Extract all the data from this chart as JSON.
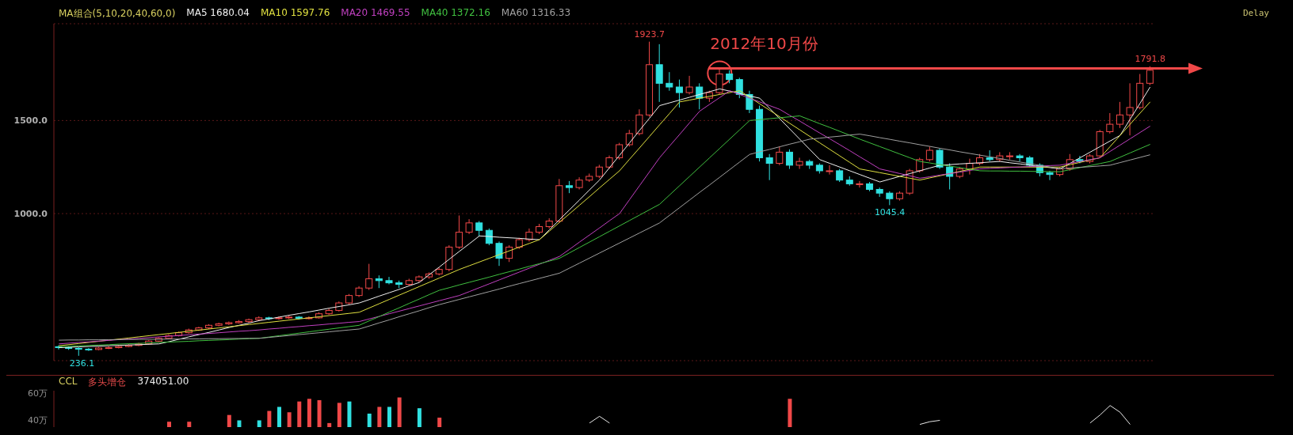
{
  "chart_data": [
    {
      "type": "candlestick",
      "legend_title": "MA组合(5,10,20,40,60,0)",
      "legend": "top left",
      "grid": "y",
      "tick_labels": "y",
      "categories": [
        null,
        null,
        null,
        null,
        null,
        null,
        null,
        null,
        null,
        null,
        null,
        null,
        null,
        null,
        null,
        null,
        null,
        null,
        null,
        null,
        null,
        null,
        null,
        null,
        null,
        null,
        null,
        null,
        null,
        null,
        null,
        null,
        null,
        null,
        null,
        null,
        null,
        null,
        null,
        null,
        null,
        null,
        null,
        null,
        null,
        null,
        null,
        null,
        null,
        null,
        null,
        null,
        null,
        null,
        null,
        null,
        null,
        null,
        null,
        null,
        null,
        null,
        null,
        null,
        null,
        null,
        null,
        null,
        null,
        null,
        null,
        null,
        null,
        null,
        null,
        null,
        null,
        null,
        null,
        null,
        null,
        null,
        null,
        null,
        null,
        null,
        null,
        null,
        null,
        null,
        null,
        null,
        null,
        null,
        null,
        null,
        null,
        null,
        null,
        null,
        null,
        null,
        null,
        null,
        null,
        null,
        null,
        null,
        null,
        null
      ],
      "ohlc": [
        [
          285,
          292,
          270,
          280
        ],
        [
          280,
          286,
          268,
          276
        ],
        [
          276,
          282,
          236.1,
          272
        ],
        [
          272,
          278,
          262,
          270
        ],
        [
          270,
          284,
          266,
          278
        ],
        [
          278,
          288,
          272,
          280
        ],
        [
          280,
          292,
          276,
          286
        ],
        [
          286,
          298,
          282,
          292
        ],
        [
          292,
          306,
          288,
          300
        ],
        [
          300,
          320,
          296,
          315
        ],
        [
          315,
          336,
          310,
          330
        ],
        [
          330,
          352,
          326,
          345
        ],
        [
          345,
          366,
          340,
          360
        ],
        [
          360,
          382,
          355,
          375
        ],
        [
          375,
          392,
          370,
          386
        ],
        [
          386,
          406,
          380,
          400
        ],
        [
          400,
          414,
          394,
          408
        ],
        [
          408,
          420,
          402,
          414
        ],
        [
          414,
          428,
          410,
          420
        ],
        [
          420,
          436,
          414,
          430
        ],
        [
          430,
          448,
          424,
          440
        ],
        [
          440,
          446,
          428,
          436
        ],
        [
          436,
          448,
          430,
          440
        ],
        [
          440,
          452,
          434,
          444
        ],
        [
          444,
          450,
          430,
          438
        ],
        [
          438,
          448,
          432,
          440
        ],
        [
          440,
          470,
          436,
          462
        ],
        [
          462,
          490,
          456,
          480
        ],
        [
          480,
          528,
          474,
          520
        ],
        [
          520,
          568,
          512,
          560
        ],
        [
          560,
          610,
          552,
          600
        ],
        [
          600,
          730,
          590,
          650
        ],
        [
          650,
          668,
          600,
          640
        ],
        [
          640,
          660,
          620,
          628
        ],
        [
          628,
          640,
          600,
          620
        ],
        [
          620,
          650,
          612,
          640
        ],
        [
          640,
          668,
          632,
          660
        ],
        [
          660,
          684,
          650,
          676
        ],
        [
          676,
          710,
          668,
          700
        ],
        [
          700,
          830,
          690,
          820
        ],
        [
          820,
          990,
          810,
          900
        ],
        [
          900,
          970,
          890,
          950
        ],
        [
          950,
          960,
          880,
          910
        ],
        [
          910,
          920,
          830,
          840
        ],
        [
          840,
          850,
          719,
          760
        ],
        [
          760,
          830,
          740,
          820
        ],
        [
          820,
          870,
          810,
          860
        ],
        [
          860,
          920,
          850,
          900
        ],
        [
          900,
          945,
          890,
          930
        ],
        [
          930,
          975,
          920,
          960
        ],
        [
          960,
          1186,
          950,
          1150
        ],
        [
          1150,
          1175,
          1110,
          1140
        ],
        [
          1140,
          1195,
          1130,
          1180
        ],
        [
          1180,
          1215,
          1170,
          1200
        ],
        [
          1200,
          1262,
          1190,
          1250
        ],
        [
          1250,
          1312,
          1240,
          1300
        ],
        [
          1300,
          1380,
          1290,
          1370
        ],
        [
          1370,
          1450,
          1360,
          1430
        ],
        [
          1430,
          1560,
          1420,
          1530
        ],
        [
          1530,
          1923.7,
          1520,
          1800
        ],
        [
          1800,
          1910,
          1600,
          1700
        ],
        [
          1700,
          1760,
          1660,
          1680
        ],
        [
          1680,
          1720,
          1570,
          1650
        ],
        [
          1650,
          1740,
          1640,
          1680
        ],
        [
          1680,
          1700,
          1560,
          1620
        ],
        [
          1620,
          1660,
          1600,
          1650
        ],
        [
          1650,
          1780,
          1640,
          1750
        ],
        [
          1750,
          1770,
          1700,
          1720
        ],
        [
          1720,
          1730,
          1620,
          1640
        ],
        [
          1640,
          1660,
          1540,
          1560
        ],
        [
          1560,
          1580,
          1280,
          1300
        ],
        [
          1300,
          1320,
          1180,
          1270
        ],
        [
          1270,
          1360,
          1260,
          1330
        ],
        [
          1330,
          1345,
          1240,
          1260
        ],
        [
          1260,
          1300,
          1240,
          1280
        ],
        [
          1280,
          1290,
          1240,
          1260
        ],
        [
          1260,
          1270,
          1215,
          1230
        ],
        [
          1230,
          1260,
          1210,
          1230
        ],
        [
          1230,
          1240,
          1170,
          1180
        ],
        [
          1180,
          1200,
          1150,
          1160
        ],
        [
          1160,
          1175,
          1140,
          1160
        ],
        [
          1160,
          1170,
          1120,
          1130
        ],
        [
          1130,
          1140,
          1090,
          1110
        ],
        [
          1110,
          1120,
          1045.4,
          1080
        ],
        [
          1080,
          1120,
          1070,
          1110
        ],
        [
          1110,
          1240,
          1100,
          1230
        ],
        [
          1230,
          1300,
          1220,
          1290
        ],
        [
          1290,
          1360,
          1280,
          1340
        ],
        [
          1340,
          1350,
          1240,
          1250
        ],
        [
          1250,
          1270,
          1130,
          1200
        ],
        [
          1200,
          1250,
          1190,
          1240
        ],
        [
          1240,
          1295,
          1210,
          1270
        ],
        [
          1270,
          1320,
          1260,
          1300
        ],
        [
          1300,
          1340,
          1280,
          1290
        ],
        [
          1290,
          1330,
          1280,
          1310
        ],
        [
          1310,
          1330,
          1290,
          1310
        ],
        [
          1310,
          1320,
          1280,
          1300
        ],
        [
          1300,
          1310,
          1250,
          1260
        ],
        [
          1260,
          1270,
          1200,
          1220
        ],
        [
          1220,
          1230,
          1180,
          1210
        ],
        [
          1210,
          1250,
          1200,
          1240
        ],
        [
          1240,
          1320,
          1230,
          1290
        ],
        [
          1290,
          1310,
          1270,
          1280
        ],
        [
          1280,
          1320,
          1270,
          1310
        ],
        [
          1310,
          1450,
          1300,
          1440
        ],
        [
          1440,
          1540,
          1430,
          1480
        ],
        [
          1480,
          1600,
          1460,
          1530
        ],
        [
          1530,
          1700,
          1420,
          1570
        ],
        [
          1570,
          1750,
          1560,
          1700
        ],
        [
          1700,
          1791.8,
          1690,
          1770
        ]
      ],
      "colors": [
        "#30e0e0",
        "#30e0e0",
        "#30e0e0",
        "#30e0e0",
        "#f04848",
        "#f04848",
        "#f04848",
        "#f04848",
        "#f04848",
        "#f04848",
        "#f04848",
        "#f04848",
        "#f04848",
        "#f04848",
        "#f04848",
        "#f04848",
        "#f04848",
        "#f04848",
        "#f04848",
        "#f04848",
        "#f04848",
        "#30e0e0",
        "#f04848",
        "#f04848",
        "#30e0e0",
        "#f04848",
        "#f04848",
        "#f04848",
        "#f04848",
        "#f04848",
        "#f04848",
        "#f04848",
        "#30e0e0",
        "#30e0e0",
        "#30e0e0",
        "#f04848",
        "#f04848",
        "#f04848",
        "#f04848",
        "#f04848",
        "#f04848",
        "#f04848",
        "#30e0e0",
        "#30e0e0",
        "#30e0e0",
        "#f04848",
        "#f04848",
        "#f04848",
        "#f04848",
        "#f04848",
        "#f04848",
        "#30e0e0",
        "#f04848",
        "#f04848",
        "#f04848",
        "#f04848",
        "#f04848",
        "#f04848",
        "#f04848",
        "#f04848",
        "#30e0e0",
        "#30e0e0",
        "#30e0e0",
        "#f04848",
        "#30e0e0",
        "#f04848",
        "#f04848",
        "#30e0e0",
        "#30e0e0",
        "#30e0e0",
        "#30e0e0",
        "#30e0e0",
        "#f04848",
        "#30e0e0",
        "#f04848",
        "#30e0e0",
        "#30e0e0",
        "#f04848",
        "#30e0e0",
        "#30e0e0",
        "#f04848",
        "#30e0e0",
        "#30e0e0",
        "#30e0e0",
        "#f04848",
        "#f04848",
        "#f04848",
        "#f04848",
        "#30e0e0",
        "#30e0e0",
        "#f04848",
        "#f04848",
        "#f04848",
        "#30e0e0",
        "#f04848",
        "#f04848",
        "#30e0e0",
        "#30e0e0",
        "#30e0e0",
        "#30e0e0",
        "#f04848",
        "#f04848",
        "#30e0e0",
        "#f04848",
        "#f04848",
        "#f04848",
        "#f04848",
        "#f04848",
        "#f04848",
        "#f04848"
      ],
      "series": [
        {
          "type": "line",
          "name": "MA5 1680.04",
          "color": "#f0f0f0",
          "values": [
            280,
            282,
            284,
            286,
            288,
            290,
            292,
            294,
            296,
            298,
            300,
            312,
            325,
            338,
            350,
            362,
            375,
            388,
            400,
            412,
            425,
            434,
            444,
            454,
            463,
            472,
            482,
            492,
            501,
            510,
            520,
            538,
            557,
            575,
            593,
            612,
            630,
            672,
            713,
            755,
            797,
            838,
            880,
            877,
            873,
            870,
            867,
            863,
            860,
            913,
            967,
            1020,
            1073,
            1127,
            1180,
            1247,
            1313,
            1380,
            1447,
            1513,
            1580,
            1595,
            1610,
            1625,
            1640,
            1655,
            1670,
            1658,
            1645,
            1632,
            1620,
            1565,
            1510,
            1455,
            1400,
            1345,
            1290,
            1270,
            1250,
            1230,
            1210,
            1190,
            1170,
            1185,
            1200,
            1215,
            1230,
            1245,
            1260,
            1263,
            1267,
            1270,
            1273,
            1277,
            1280,
            1273,
            1267,
            1260,
            1253,
            1247,
            1240,
            1270,
            1300,
            1330,
            1360,
            1390,
            1420,
            1507,
            1593,
            1680
          ]
        },
        {
          "type": "line",
          "name": "MA10 1597.76",
          "color": "#e0e040",
          "values": [
            290,
            296,
            302,
            308,
            314,
            320,
            326,
            332,
            338,
            344,
            350,
            356,
            362,
            368,
            374,
            380,
            386,
            392,
            398,
            404,
            410,
            416,
            422,
            428,
            434,
            440,
            446,
            452,
            458,
            464,
            470,
            493,
            516,
            539,
            562,
            585,
            608,
            631,
            654,
            677,
            700,
            720,
            740,
            760,
            780,
            800,
            820,
            840,
            860,
            906,
            953,
            999,
            1045,
            1091,
            1138,
            1184,
            1230,
            1292,
            1353,
            1415,
            1477,
            1538,
            1600,
            1610,
            1620,
            1630,
            1640,
            1650,
            1660,
            1625,
            1590,
            1555,
            1520,
            1485,
            1450,
            1415,
            1380,
            1345,
            1310,
            1275,
            1240,
            1230,
            1220,
            1210,
            1200,
            1190,
            1180,
            1192,
            1203,
            1215,
            1227,
            1238,
            1250,
            1250,
            1250,
            1250,
            1250,
            1250,
            1250,
            1250,
            1250,
            1263,
            1275,
            1288,
            1300,
            1360,
            1420,
            1480,
            1540,
            1600
          ]
        },
        {
          "type": "line",
          "name": "MA20 1469.55",
          "color": "#c040c0",
          "values": [
            300,
            304,
            308,
            311,
            315,
            319,
            323,
            326,
            330,
            334,
            338,
            341,
            345,
            349,
            353,
            356,
            360,
            364,
            368,
            371,
            375,
            380,
            384,
            389,
            393,
            398,
            402,
            407,
            411,
            416,
            420,
            434,
            448,
            462,
            476,
            490,
            504,
            518,
            532,
            546,
            560,
            581,
            602,
            623,
            644,
            665,
            686,
            707,
            728,
            749,
            770,
            808,
            847,
            885,
            923,
            962,
            1000,
            1075,
            1150,
            1225,
            1300,
            1363,
            1425,
            1488,
            1550,
            1587,
            1623,
            1660,
            1640,
            1620,
            1600,
            1580,
            1560,
            1528,
            1497,
            1465,
            1433,
            1402,
            1370,
            1338,
            1305,
            1273,
            1240,
            1228,
            1215,
            1203,
            1190,
            1198,
            1207,
            1215,
            1223,
            1232,
            1240,
            1243,
            1245,
            1248,
            1250,
            1253,
            1255,
            1258,
            1260,
            1270,
            1280,
            1290,
            1300,
            1334,
            1368,
            1402,
            1436,
            1470
          ]
        },
        {
          "type": "line",
          "name": "MA40 1372.16",
          "color": "#40c040",
          "values": [
            285,
            287,
            290,
            292,
            294,
            296,
            299,
            301,
            303,
            305,
            308,
            310,
            312,
            314,
            317,
            319,
            321,
            323,
            326,
            328,
            330,
            337,
            344,
            351,
            358,
            365,
            372,
            379,
            386,
            393,
            400,
            424,
            447,
            471,
            494,
            518,
            541,
            565,
            588,
            602,
            617,
            631,
            645,
            659,
            674,
            688,
            702,
            717,
            731,
            745,
            760,
            789,
            818,
            847,
            876,
            905,
            934,
            963,
            992,
            1021,
            1050,
            1100,
            1150,
            1200,
            1250,
            1300,
            1350,
            1400,
            1450,
            1500,
            1505,
            1510,
            1515,
            1520,
            1525,
            1504,
            1483,
            1463,
            1442,
            1421,
            1400,
            1380,
            1360,
            1340,
            1320,
            1300,
            1280,
            1272,
            1263,
            1255,
            1247,
            1238,
            1230,
            1229,
            1229,
            1228,
            1228,
            1227,
            1226,
            1226,
            1225,
            1236,
            1247,
            1258,
            1269,
            1280,
            1303,
            1326,
            1349,
            1372
          ]
        },
        {
          "type": "line",
          "name": "MA60 1316.33",
          "color": "#a0a0a0",
          "values": [
            320,
            321,
            321,
            322,
            322,
            323,
            323,
            324,
            324,
            325,
            325,
            326,
            326,
            327,
            327,
            328,
            328,
            329,
            329,
            330,
            330,
            335,
            340,
            345,
            350,
            355,
            360,
            365,
            370,
            375,
            380,
            396,
            413,
            429,
            446,
            462,
            478,
            495,
            511,
            525,
            539,
            553,
            567,
            581,
            595,
            610,
            624,
            638,
            652,
            666,
            680,
            707,
            734,
            761,
            788,
            815,
            842,
            869,
            896,
            923,
            950,
            991,
            1032,
            1073,
            1114,
            1154,
            1195,
            1236,
            1277,
            1318,
            1332,
            1345,
            1359,
            1373,
            1386,
            1400,
            1405,
            1411,
            1416,
            1422,
            1427,
            1418,
            1408,
            1399,
            1389,
            1380,
            1370,
            1361,
            1351,
            1342,
            1332,
            1323,
            1314,
            1305,
            1296,
            1286,
            1277,
            1268,
            1259,
            1250,
            1241,
            1245,
            1249,
            1252,
            1256,
            1260,
            1274,
            1288,
            1302,
            1316
          ]
        }
      ],
      "ylim": [
        210,
        2020
      ],
      "yticks": [
        {
          "value": 1000,
          "label": "1000.0"
        },
        {
          "value": 1500,
          "label": "1500.0"
        }
      ],
      "ref_lines": [
        {
          "axis": "y",
          "value": 1780,
          "label": "2012年10月份",
          "color": "#f04848"
        }
      ],
      "annotations": [
        {
          "text": "1923.7",
          "y": 1923.7
        },
        {
          "text": "1045.4",
          "y": 1045.4
        },
        {
          "text": "1791.8",
          "y": 1791.8
        },
        {
          "text": "236.1",
          "y": 236.1
        },
        "Delay"
      ]
    },
    {
      "type": "bar",
      "legend_title": "CCL",
      "tick_labels": "y",
      "categories": [
        null,
        null,
        null,
        null,
        null,
        null,
        null,
        null,
        null,
        null,
        null,
        null,
        null,
        null,
        null,
        null,
        null,
        null,
        null,
        null,
        null,
        null,
        null,
        null,
        null,
        null,
        null,
        null,
        null,
        null,
        null,
        null,
        null,
        null,
        null,
        null,
        null,
        null,
        null,
        null,
        null,
        null,
        null,
        null,
        null,
        null,
        null,
        null,
        null,
        null,
        null,
        null,
        null,
        null,
        null,
        null,
        null,
        null,
        null,
        null,
        null,
        null,
        null,
        null,
        null,
        null,
        null,
        null,
        null,
        null,
        null,
        null,
        null,
        null,
        null,
        null,
        null,
        null,
        null,
        null,
        null,
        null,
        null,
        null,
        null,
        null,
        null,
        null,
        null,
        null,
        null,
        null,
        null,
        null,
        null,
        null,
        null,
        null,
        null,
        null,
        null,
        null,
        null,
        null,
        null,
        null,
        null,
        null,
        null,
        null
      ],
      "series": [
        {
          "type": "bar",
          "values": [
            null,
            null,
            null,
            null,
            null,
            null,
            null,
            null,
            null,
            null,
            null,
            39,
            null,
            39,
            null,
            null,
            null,
            44,
            40,
            null,
            40,
            47,
            50,
            46,
            54,
            56,
            55,
            38,
            53,
            54,
            null,
            45,
            50,
            50,
            57,
            null,
            49,
            null,
            42,
            null,
            null,
            null,
            null,
            null,
            null,
            null,
            null,
            null,
            null,
            null,
            null,
            null,
            null,
            null,
            null,
            null,
            null,
            null,
            null,
            null,
            null,
            null,
            null,
            null,
            null,
            null,
            null,
            null,
            null,
            null,
            null,
            null,
            null,
            56,
            null,
            null,
            null,
            null,
            null,
            null,
            null,
            null,
            null,
            null,
            null,
            null,
            null,
            null,
            null,
            null,
            null,
            null,
            null,
            null,
            null,
            null,
            null,
            null,
            null,
            null,
            null,
            null,
            null,
            null,
            null,
            null,
            null,
            null,
            null,
            null
          ],
          "colors": [
            null,
            null,
            null,
            null,
            null,
            null,
            null,
            null,
            null,
            null,
            null,
            "#f04848",
            null,
            "#f04848",
            null,
            null,
            null,
            "#f04848",
            "#30e0e0",
            null,
            "#30e0e0",
            "#f04848",
            "#30e0e0",
            "#f04848",
            "#f04848",
            "#f04848",
            "#f04848",
            "#f04848",
            "#f04848",
            "#30e0e0",
            null,
            "#30e0e0",
            "#f04848",
            "#30e0e0",
            "#f04848",
            null,
            "#30e0e0",
            null,
            "#f04848",
            null,
            null,
            null,
            null,
            null,
            null,
            null,
            null,
            null,
            null,
            null,
            null,
            null,
            null,
            null,
            null,
            null,
            null,
            null,
            null,
            null,
            null,
            null,
            null,
            null,
            null,
            null,
            null,
            null,
            null,
            null,
            null,
            null,
            null,
            "#f04848",
            null,
            null,
            null,
            null,
            null,
            null,
            null,
            null,
            null,
            null,
            null,
            null,
            null,
            null,
            null,
            null,
            null,
            null,
            null,
            null,
            null,
            null,
            null,
            null,
            null,
            null,
            null,
            null,
            null,
            null,
            null,
            null,
            null,
            null,
            null,
            null
          ]
        },
        {
          "type": "line",
          "color": "#e8e8e8",
          "values": [
            null,
            null,
            null,
            null,
            null,
            null,
            null,
            null,
            null,
            null,
            null,
            null,
            null,
            null,
            null,
            null,
            null,
            null,
            null,
            null,
            null,
            null,
            null,
            null,
            null,
            null,
            null,
            null,
            null,
            null,
            null,
            null,
            null,
            null,
            null,
            null,
            null,
            null,
            null,
            null,
            null,
            null,
            null,
            null,
            null,
            null,
            null,
            null,
            null,
            null,
            null,
            null,
            null,
            38,
            43,
            38,
            null,
            null,
            null,
            null,
            null,
            null,
            null,
            null,
            null,
            null,
            null,
            null,
            null,
            null,
            null,
            null,
            null,
            null,
            null,
            null,
            null,
            null,
            null,
            null,
            null,
            null,
            null,
            null,
            null,
            null,
            37,
            39,
            40,
            null,
            null,
            null,
            null,
            null,
            null,
            null,
            null,
            null,
            null,
            null,
            null,
            null,
            null,
            38,
            44,
            51,
            46,
            37,
            null,
            null
          ]
        }
      ],
      "ylim": [
        35,
        62
      ],
      "yticks": [
        {
          "value": 60,
          "label": "60万"
        },
        {
          "value": 40,
          "label": "40万"
        }
      ],
      "annotations": [
        "多头增仓",
        "374051.00"
      ]
    }
  ]
}
